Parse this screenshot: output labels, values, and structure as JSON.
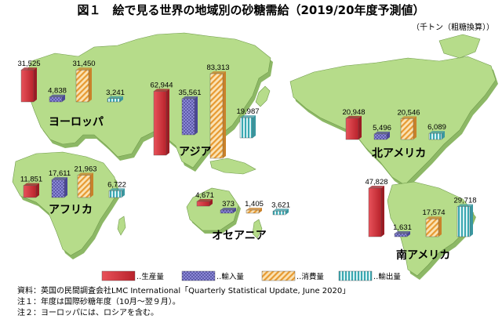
{
  "title": "図１　絵で見る世界の地域別の砂糖需給（2019/20年度予測値）",
  "unit": "（千トン（粗糖換算））",
  "colors": {
    "production": "#d6323c",
    "imports": "#7b78c9",
    "consumption": "#f2b45a",
    "exports": "#5bbfc6",
    "land": "#b6dc8a",
    "land_dark": "#8db866"
  },
  "chart_data": {
    "type": "bar",
    "title": "図１　絵で見る世界の地域別の砂糖需給（2019/20年度予測値）",
    "unit": "千トン（粗糖換算）",
    "series": [
      {
        "key": "production",
        "name": "生産量"
      },
      {
        "key": "imports",
        "name": "輸入量"
      },
      {
        "key": "consumption",
        "name": "消費量"
      },
      {
        "key": "exports",
        "name": "輸出量"
      }
    ],
    "regions": [
      {
        "id": "europe",
        "name": "ヨーロッパ",
        "values": [
          31525,
          4838,
          31450,
          3241
        ],
        "value_labels": [
          "31,525",
          "4,838",
          "31,450",
          "3,241"
        ]
      },
      {
        "id": "asia",
        "name": "アジア",
        "values": [
          62944,
          35561,
          83313,
          19987
        ],
        "value_labels": [
          "62,944",
          "35,561",
          "83,313",
          "19,987"
        ]
      },
      {
        "id": "africa",
        "name": "アフリカ",
        "values": [
          11851,
          17611,
          21963,
          6722
        ],
        "value_labels": [
          "11,851",
          "17,611",
          "21,963",
          "6,722"
        ]
      },
      {
        "id": "oceania",
        "name": "オセアニア",
        "values": [
          4671,
          373,
          1405,
          3621
        ],
        "value_labels": [
          "4,671",
          "373",
          "1,405",
          "3,621"
        ]
      },
      {
        "id": "north_america",
        "name": "北アメリカ",
        "values": [
          20948,
          5496,
          20546,
          6089
        ],
        "value_labels": [
          "20,948",
          "5,496",
          "20,546",
          "6,089"
        ]
      },
      {
        "id": "south_america",
        "name": "南アメリカ",
        "values": [
          47828,
          1631,
          17574,
          29718
        ],
        "value_labels": [
          "47,828",
          "1,631",
          "17,574",
          "29,718"
        ]
      }
    ]
  },
  "legend": [
    {
      "key": "production",
      "label": "‥生産量"
    },
    {
      "key": "imports",
      "label": "‥輸入量"
    },
    {
      "key": "consumption",
      "label": "‥消費量"
    },
    {
      "key": "exports",
      "label": "‥輸出量"
    }
  ],
  "notes": [
    "資料：英国の民間調査会社LMC International「Quarterly Statistical Update, June 2020」",
    "注１：年度は国際砂糖年度（10月～翌９月）。",
    "注２：ヨーロッパには、ロシアを含む。"
  ]
}
